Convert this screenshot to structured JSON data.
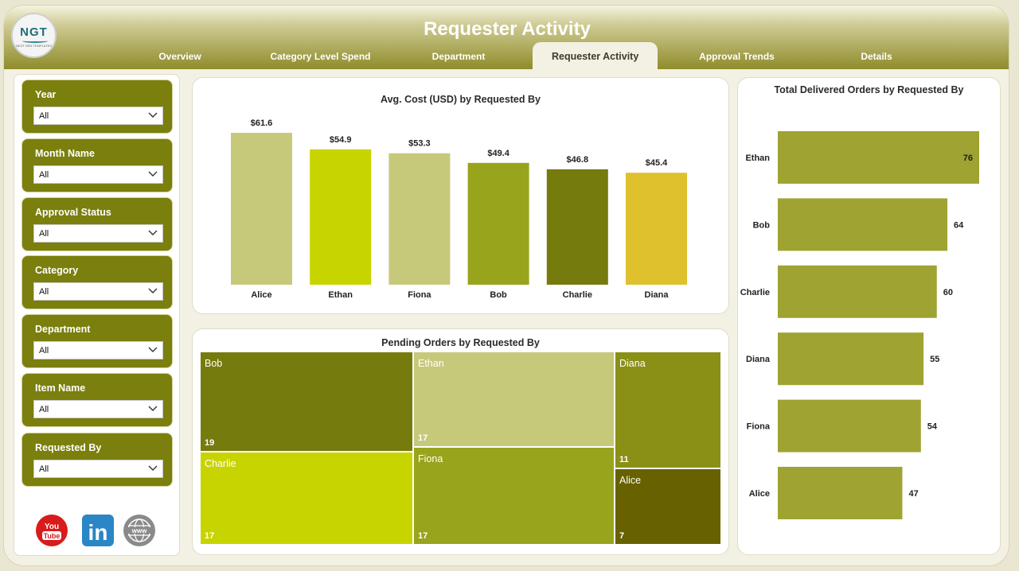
{
  "app": {
    "logo_text": "NGT",
    "logo_subtitle": "NEXT GEN TEMPLATES",
    "title": "Requester Activity"
  },
  "tabs": [
    {
      "label": "Overview"
    },
    {
      "label": "Category Level Spend"
    },
    {
      "label": "Department"
    },
    {
      "label": "Requester Activity"
    },
    {
      "label": "Approval Trends"
    },
    {
      "label": "Details"
    }
  ],
  "active_tab": "Requester Activity",
  "slicers": [
    {
      "label": "Year",
      "value": "All"
    },
    {
      "label": "Month Name",
      "value": "All"
    },
    {
      "label": "Approval Status",
      "value": "All"
    },
    {
      "label": "Category",
      "value": "All"
    },
    {
      "label": "Department",
      "value": "All"
    },
    {
      "label": "Item Name",
      "value": "All"
    },
    {
      "label": "Requested By",
      "value": "All"
    }
  ],
  "social": {
    "youtube_label": "You Tube",
    "linkedin_label": "in",
    "website_label": "www"
  },
  "colors": {
    "header_dark": "#8f8c2a",
    "slicer_bg": "#7a7f0d",
    "olive": "#9ea332",
    "khaki": "#c6c97a",
    "lime": "#c8d400",
    "olive_dark": "#767b0d",
    "gold": "#dfc02d",
    "olive_mid": "#98a41c",
    "brown_olive": "#676100"
  },
  "chart_data": [
    {
      "type": "bar",
      "title": "Avg. Cost (USD) by Requested By",
      "categories": [
        "Alice",
        "Ethan",
        "Fiona",
        "Bob",
        "Charlie",
        "Diana"
      ],
      "values": [
        61.6,
        54.9,
        53.3,
        49.4,
        46.8,
        45.4
      ],
      "labels": [
        "$61.6",
        "$54.9",
        "$53.3",
        "$49.4",
        "$46.8",
        "$45.4"
      ],
      "colors": [
        "#c6c97a",
        "#c8d400",
        "#c6c97a",
        "#98a41c",
        "#767b0d",
        "#dfc02d"
      ],
      "xlabel": "",
      "ylabel": "",
      "ylim": [
        0,
        65
      ]
    },
    {
      "type": "treemap",
      "title": "Pending Orders by Requested By",
      "items": [
        {
          "name": "Bob",
          "value": 19,
          "color": "#767b0d"
        },
        {
          "name": "Ethan",
          "value": 17,
          "color": "#c6c97a"
        },
        {
          "name": "Diana",
          "value": 11,
          "color": "#8a9016"
        },
        {
          "name": "Charlie",
          "value": 17,
          "color": "#c8d400"
        },
        {
          "name": "Fiona",
          "value": 17,
          "color": "#98a41c"
        },
        {
          "name": "Alice",
          "value": 7,
          "color": "#676100"
        }
      ]
    },
    {
      "type": "bar",
      "orientation": "horizontal",
      "title": "Total Delivered Orders by Requested By",
      "categories": [
        "Ethan",
        "Bob",
        "Charlie",
        "Diana",
        "Fiona",
        "Alice"
      ],
      "values": [
        76,
        64,
        60,
        55,
        54,
        47
      ],
      "color": "#9ea332",
      "xlim": [
        0,
        76
      ]
    }
  ]
}
